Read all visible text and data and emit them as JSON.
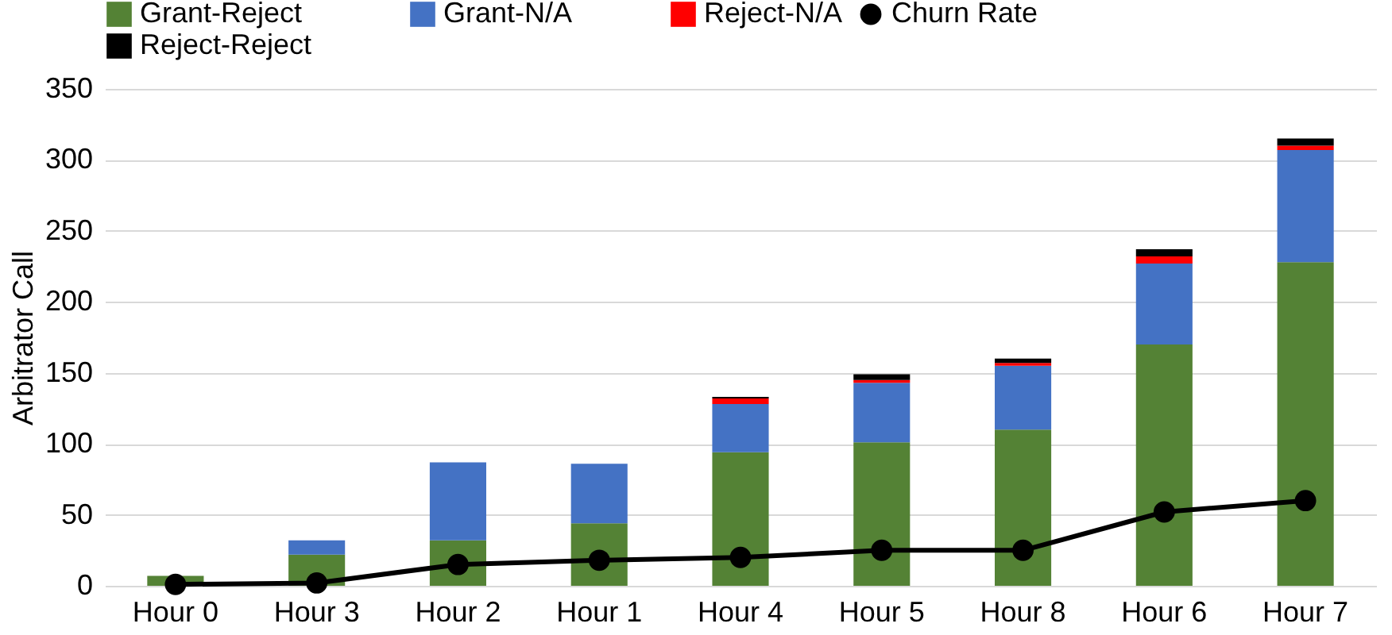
{
  "chart_data": {
    "type": "bar",
    "stacked": true,
    "ylabel": "Arbitrator Call",
    "categories": [
      "Hour 0",
      "Hour 3",
      "Hour 2",
      "Hour 1",
      "Hour 4",
      "Hour 5",
      "Hour 8",
      "Hour 6",
      "Hour 7"
    ],
    "series": [
      {
        "name": "Grant-Reject",
        "color": "#548235",
        "values": [
          7,
          22,
          32,
          44,
          94,
          101,
          110,
          170,
          228
        ]
      },
      {
        "name": "Grant-N/A",
        "color": "#4472c4",
        "values": [
          0,
          10,
          55,
          42,
          34,
          42,
          45,
          57,
          79
        ]
      },
      {
        "name": "Reject-N/A",
        "color": "#ff0000",
        "values": [
          0,
          0,
          0,
          0,
          4,
          2,
          2,
          5,
          3
        ]
      },
      {
        "name": "Reject-Reject",
        "color": "#000000",
        "values": [
          0,
          0,
          0,
          0,
          1,
          4,
          3,
          5,
          5
        ]
      },
      {
        "name": "Churn Rate",
        "type": "line",
        "color": "#000000",
        "marker": "circle",
        "values": [
          1,
          2,
          15,
          18,
          20,
          25,
          25,
          52,
          60
        ]
      }
    ],
    "ylim": [
      0,
      350
    ],
    "yticks": [
      0,
      50,
      100,
      150,
      200,
      250,
      300,
      350
    ],
    "grid": "y",
    "legend": "top"
  }
}
